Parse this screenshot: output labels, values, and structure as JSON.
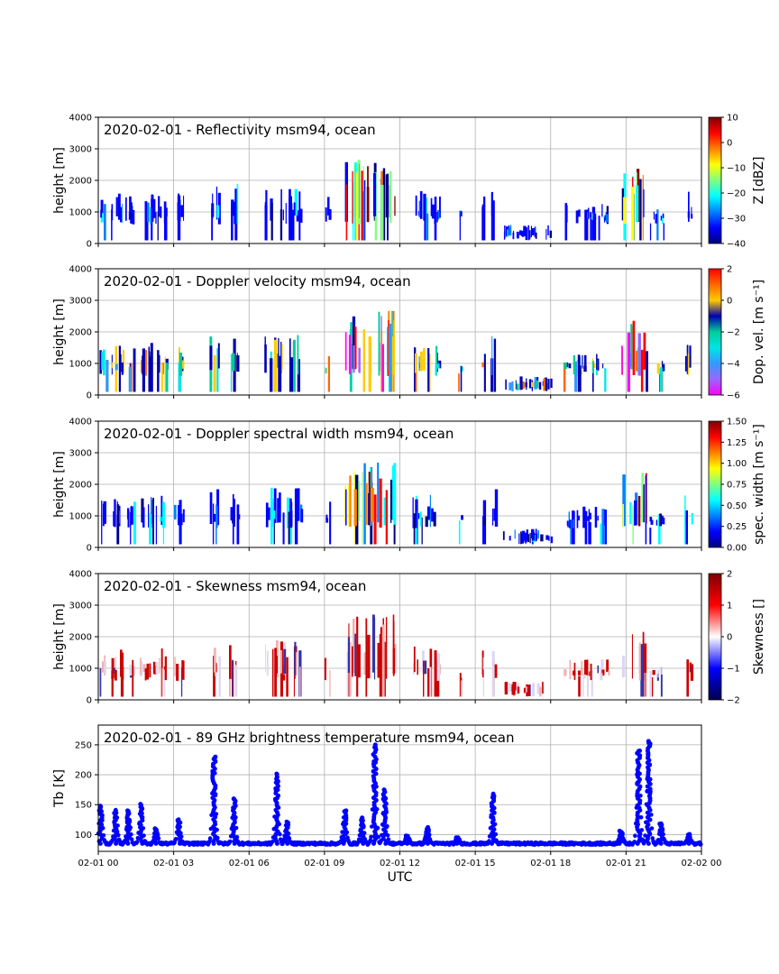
{
  "chart_data": [
    {
      "type": "heatmap",
      "title": "2020-02-01 - Reflectivity msm94, ocean",
      "ylabel": "height [m]",
      "ylim": [
        0,
        4000
      ],
      "yticks": [
        "0",
        "1000",
        "2000",
        "3000",
        "4000"
      ],
      "colorbar": {
        "label": "Z [dBZ]",
        "range": [
          -40,
          10
        ],
        "ticks": [
          "10",
          "0",
          "−10",
          "−20",
          "−30",
          "−40"
        ],
        "colormap": [
          "#00007f",
          "#0000ff",
          "#0080ff",
          "#00ffff",
          "#80ff80",
          "#ffff00",
          "#ff8000",
          "#ff0000",
          "#7f0000"
        ]
      }
    },
    {
      "type": "heatmap",
      "title": "2020-02-01 - Doppler velocity msm94, ocean",
      "ylabel": "height [m]",
      "ylim": [
        0,
        4000
      ],
      "yticks": [
        "0",
        "1000",
        "2000",
        "3000",
        "4000"
      ],
      "colorbar": {
        "label": "Dop. vel. [m s⁻¹]",
        "range": [
          -6,
          2
        ],
        "ticks": [
          "2",
          "0",
          "−2",
          "−4",
          "−6"
        ],
        "colormap": [
          "#ff00ff",
          "#9966ff",
          "#3399ff",
          "#00e5e5",
          "#00cc99",
          "#0000b0",
          "#ffcc00",
          "#ff6600",
          "#ff0000"
        ]
      }
    },
    {
      "type": "heatmap",
      "title": "2020-02-01 - Doppler spectral width msm94, ocean",
      "ylabel": "height [m]",
      "ylim": [
        0,
        4000
      ],
      "yticks": [
        "0",
        "1000",
        "2000",
        "3000",
        "4000"
      ],
      "colorbar": {
        "label": "spec. width [m s⁻¹]",
        "range": [
          0,
          1.5
        ],
        "ticks": [
          "1.50",
          "1.25",
          "1.00",
          "0.75",
          "0.50",
          "0.25",
          "0.00"
        ],
        "colormap": [
          "#00007f",
          "#0000ff",
          "#0080ff",
          "#00ffff",
          "#80ff80",
          "#ffff00",
          "#ff8000",
          "#ff0000",
          "#7f0000"
        ]
      }
    },
    {
      "type": "heatmap",
      "title": "2020-02-01 - Skewness msm94, ocean",
      "ylabel": "height [m]",
      "ylim": [
        0,
        4000
      ],
      "yticks": [
        "0",
        "1000",
        "2000",
        "3000",
        "4000"
      ],
      "colorbar": {
        "label": "Skewness []",
        "range": [
          -2,
          2
        ],
        "ticks": [
          "2",
          "1",
          "0",
          "−1",
          "−2"
        ],
        "colormap": [
          "#00004c",
          "#0000ff",
          "#ffffff",
          "#ff0000",
          "#7f0000"
        ]
      }
    },
    {
      "type": "scatter",
      "title": "2020-02-01 - 89 GHz brightness temperature msm94, ocean",
      "ylabel": "Tb [K]",
      "xlabel": "UTC",
      "ylim": [
        72,
        283
      ],
      "yticks": [
        "100",
        "150",
        "200",
        "250"
      ],
      "xticks": [
        "02-01 00",
        "02-01 03",
        "02-01 06",
        "02-01 09",
        "02-01 12",
        "02-01 15",
        "02-01 18",
        "02-01 21",
        "02-02 00"
      ],
      "series_color": "#0000ff",
      "baseline_K": 85,
      "peaks": [
        {
          "hour": 0.1,
          "value": 148
        },
        {
          "hour": 0.7,
          "value": 140
        },
        {
          "hour": 1.2,
          "value": 140
        },
        {
          "hour": 1.7,
          "value": 151
        },
        {
          "hour": 2.3,
          "value": 110
        },
        {
          "hour": 3.2,
          "value": 124
        },
        {
          "hour": 4.6,
          "value": 230
        },
        {
          "hour": 5.4,
          "value": 160
        },
        {
          "hour": 7.1,
          "value": 201
        },
        {
          "hour": 7.5,
          "value": 120
        },
        {
          "hour": 9.8,
          "value": 140
        },
        {
          "hour": 10.5,
          "value": 128
        },
        {
          "hour": 11.0,
          "value": 250
        },
        {
          "hour": 11.4,
          "value": 175
        },
        {
          "hour": 12.3,
          "value": 98
        },
        {
          "hour": 13.1,
          "value": 112
        },
        {
          "hour": 14.3,
          "value": 95
        },
        {
          "hour": 15.7,
          "value": 168
        },
        {
          "hour": 20.8,
          "value": 106
        },
        {
          "hour": 21.5,
          "value": 240
        },
        {
          "hour": 21.9,
          "value": 256
        },
        {
          "hour": 22.4,
          "value": 118
        },
        {
          "hour": 23.5,
          "value": 100
        }
      ]
    }
  ]
}
